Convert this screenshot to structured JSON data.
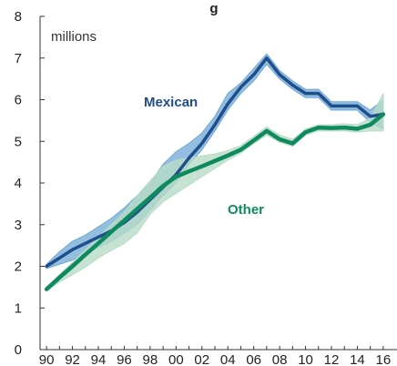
{
  "chart_data": {
    "type": "line",
    "title": "g",
    "units": "millions",
    "x": [
      1990,
      1991,
      1992,
      1993,
      1994,
      1995,
      1996,
      1997,
      1998,
      1999,
      2000,
      2001,
      2002,
      2003,
      2004,
      2005,
      2006,
      2007,
      2008,
      2009,
      2010,
      2011,
      2012,
      2013,
      2014,
      2015,
      2016
    ],
    "x_tick_labels": [
      "90",
      "92",
      "94",
      "96",
      "98",
      "00",
      "02",
      "04",
      "06",
      "08",
      "10",
      "12",
      "14",
      "16"
    ],
    "y_ticks": [
      0,
      1,
      2,
      3,
      4,
      5,
      6,
      7,
      8
    ],
    "ylim": [
      0,
      8
    ],
    "xlim": [
      1989.5,
      2016.5
    ],
    "series": [
      {
        "name": "Mexican",
        "color": "#1f4e8c",
        "band_color": "#6fa8d6",
        "values": [
          2.0,
          2.2,
          2.4,
          2.55,
          2.7,
          2.85,
          3.05,
          3.3,
          3.6,
          3.9,
          4.2,
          4.6,
          4.95,
          5.4,
          5.9,
          6.3,
          6.6,
          7.0,
          6.6,
          6.35,
          6.15,
          6.15,
          5.85,
          5.85,
          5.85,
          5.6,
          5.65
        ],
        "band_low": [
          1.95,
          2.05,
          2.15,
          2.3,
          2.45,
          2.6,
          2.8,
          3.0,
          3.35,
          3.7,
          4.0,
          4.45,
          4.8,
          5.25,
          5.75,
          6.15,
          6.45,
          6.85,
          6.5,
          6.25,
          6.05,
          6.05,
          5.75,
          5.75,
          5.75,
          5.45,
          5.3
        ],
        "band_high": [
          2.05,
          2.35,
          2.6,
          2.75,
          2.95,
          3.15,
          3.4,
          3.7,
          4.0,
          4.45,
          4.75,
          4.95,
          5.2,
          5.6,
          6.15,
          6.4,
          6.75,
          7.1,
          6.7,
          6.45,
          6.25,
          6.25,
          5.95,
          5.95,
          5.95,
          5.75,
          6.0
        ]
      },
      {
        "name": "Other",
        "color": "#0f8a5f",
        "band_color": "#b8dcc7",
        "values": [
          1.45,
          1.73,
          2.0,
          2.28,
          2.55,
          2.83,
          3.1,
          3.38,
          3.65,
          3.93,
          4.15,
          4.28,
          4.4,
          4.53,
          4.66,
          4.8,
          5.02,
          5.25,
          5.05,
          4.95,
          5.22,
          5.33,
          5.32,
          5.33,
          5.3,
          5.4,
          5.65
        ],
        "band_low": [
          1.42,
          1.62,
          1.8,
          1.98,
          2.2,
          2.38,
          2.55,
          2.8,
          3.25,
          3.55,
          3.75,
          3.95,
          4.15,
          4.35,
          4.55,
          4.72,
          4.95,
          5.15,
          4.98,
          4.88,
          5.15,
          5.25,
          5.25,
          5.25,
          5.22,
          5.25,
          5.25
        ],
        "band_high": [
          1.48,
          1.8,
          2.1,
          2.4,
          2.7,
          3.0,
          3.3,
          3.7,
          4.05,
          4.4,
          4.55,
          4.6,
          4.65,
          4.7,
          4.78,
          4.9,
          5.12,
          5.35,
          5.15,
          5.05,
          5.3,
          5.4,
          5.4,
          5.42,
          5.4,
          5.55,
          6.15
        ]
      }
    ]
  }
}
